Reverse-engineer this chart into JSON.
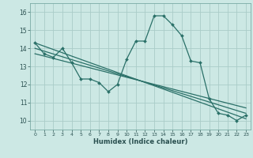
{
  "title": "",
  "xlabel": "Humidex (Indice chaleur)",
  "ylabel": "",
  "bg_color": "#cce8e4",
  "grid_color": "#aaccc8",
  "line_color": "#2a7068",
  "xlim": [
    -0.5,
    23.5
  ],
  "ylim": [
    9.5,
    16.5
  ],
  "xticks": [
    0,
    1,
    2,
    3,
    4,
    5,
    6,
    7,
    8,
    9,
    10,
    11,
    12,
    13,
    14,
    15,
    16,
    17,
    18,
    19,
    20,
    21,
    22,
    23
  ],
  "yticks": [
    10,
    11,
    12,
    13,
    14,
    15,
    16
  ],
  "series1_x": [
    0,
    1,
    2,
    3,
    4,
    5,
    6,
    7,
    8,
    9,
    10,
    11,
    12,
    13,
    14,
    15,
    16,
    17,
    18,
    19,
    20,
    21,
    22,
    23
  ],
  "series1_y": [
    14.3,
    13.7,
    13.5,
    14.0,
    13.2,
    12.3,
    12.3,
    12.1,
    11.6,
    12.0,
    13.4,
    14.4,
    14.4,
    15.8,
    15.8,
    15.3,
    14.7,
    13.3,
    13.2,
    11.2,
    10.4,
    10.3,
    10.0,
    10.3
  ],
  "series2_x": [
    0,
    23
  ],
  "series2_y": [
    14.3,
    10.1
  ],
  "series3_x": [
    0,
    23
  ],
  "series3_y": [
    14.0,
    10.4
  ],
  "series4_x": [
    0,
    23
  ],
  "series4_y": [
    13.7,
    10.7
  ]
}
